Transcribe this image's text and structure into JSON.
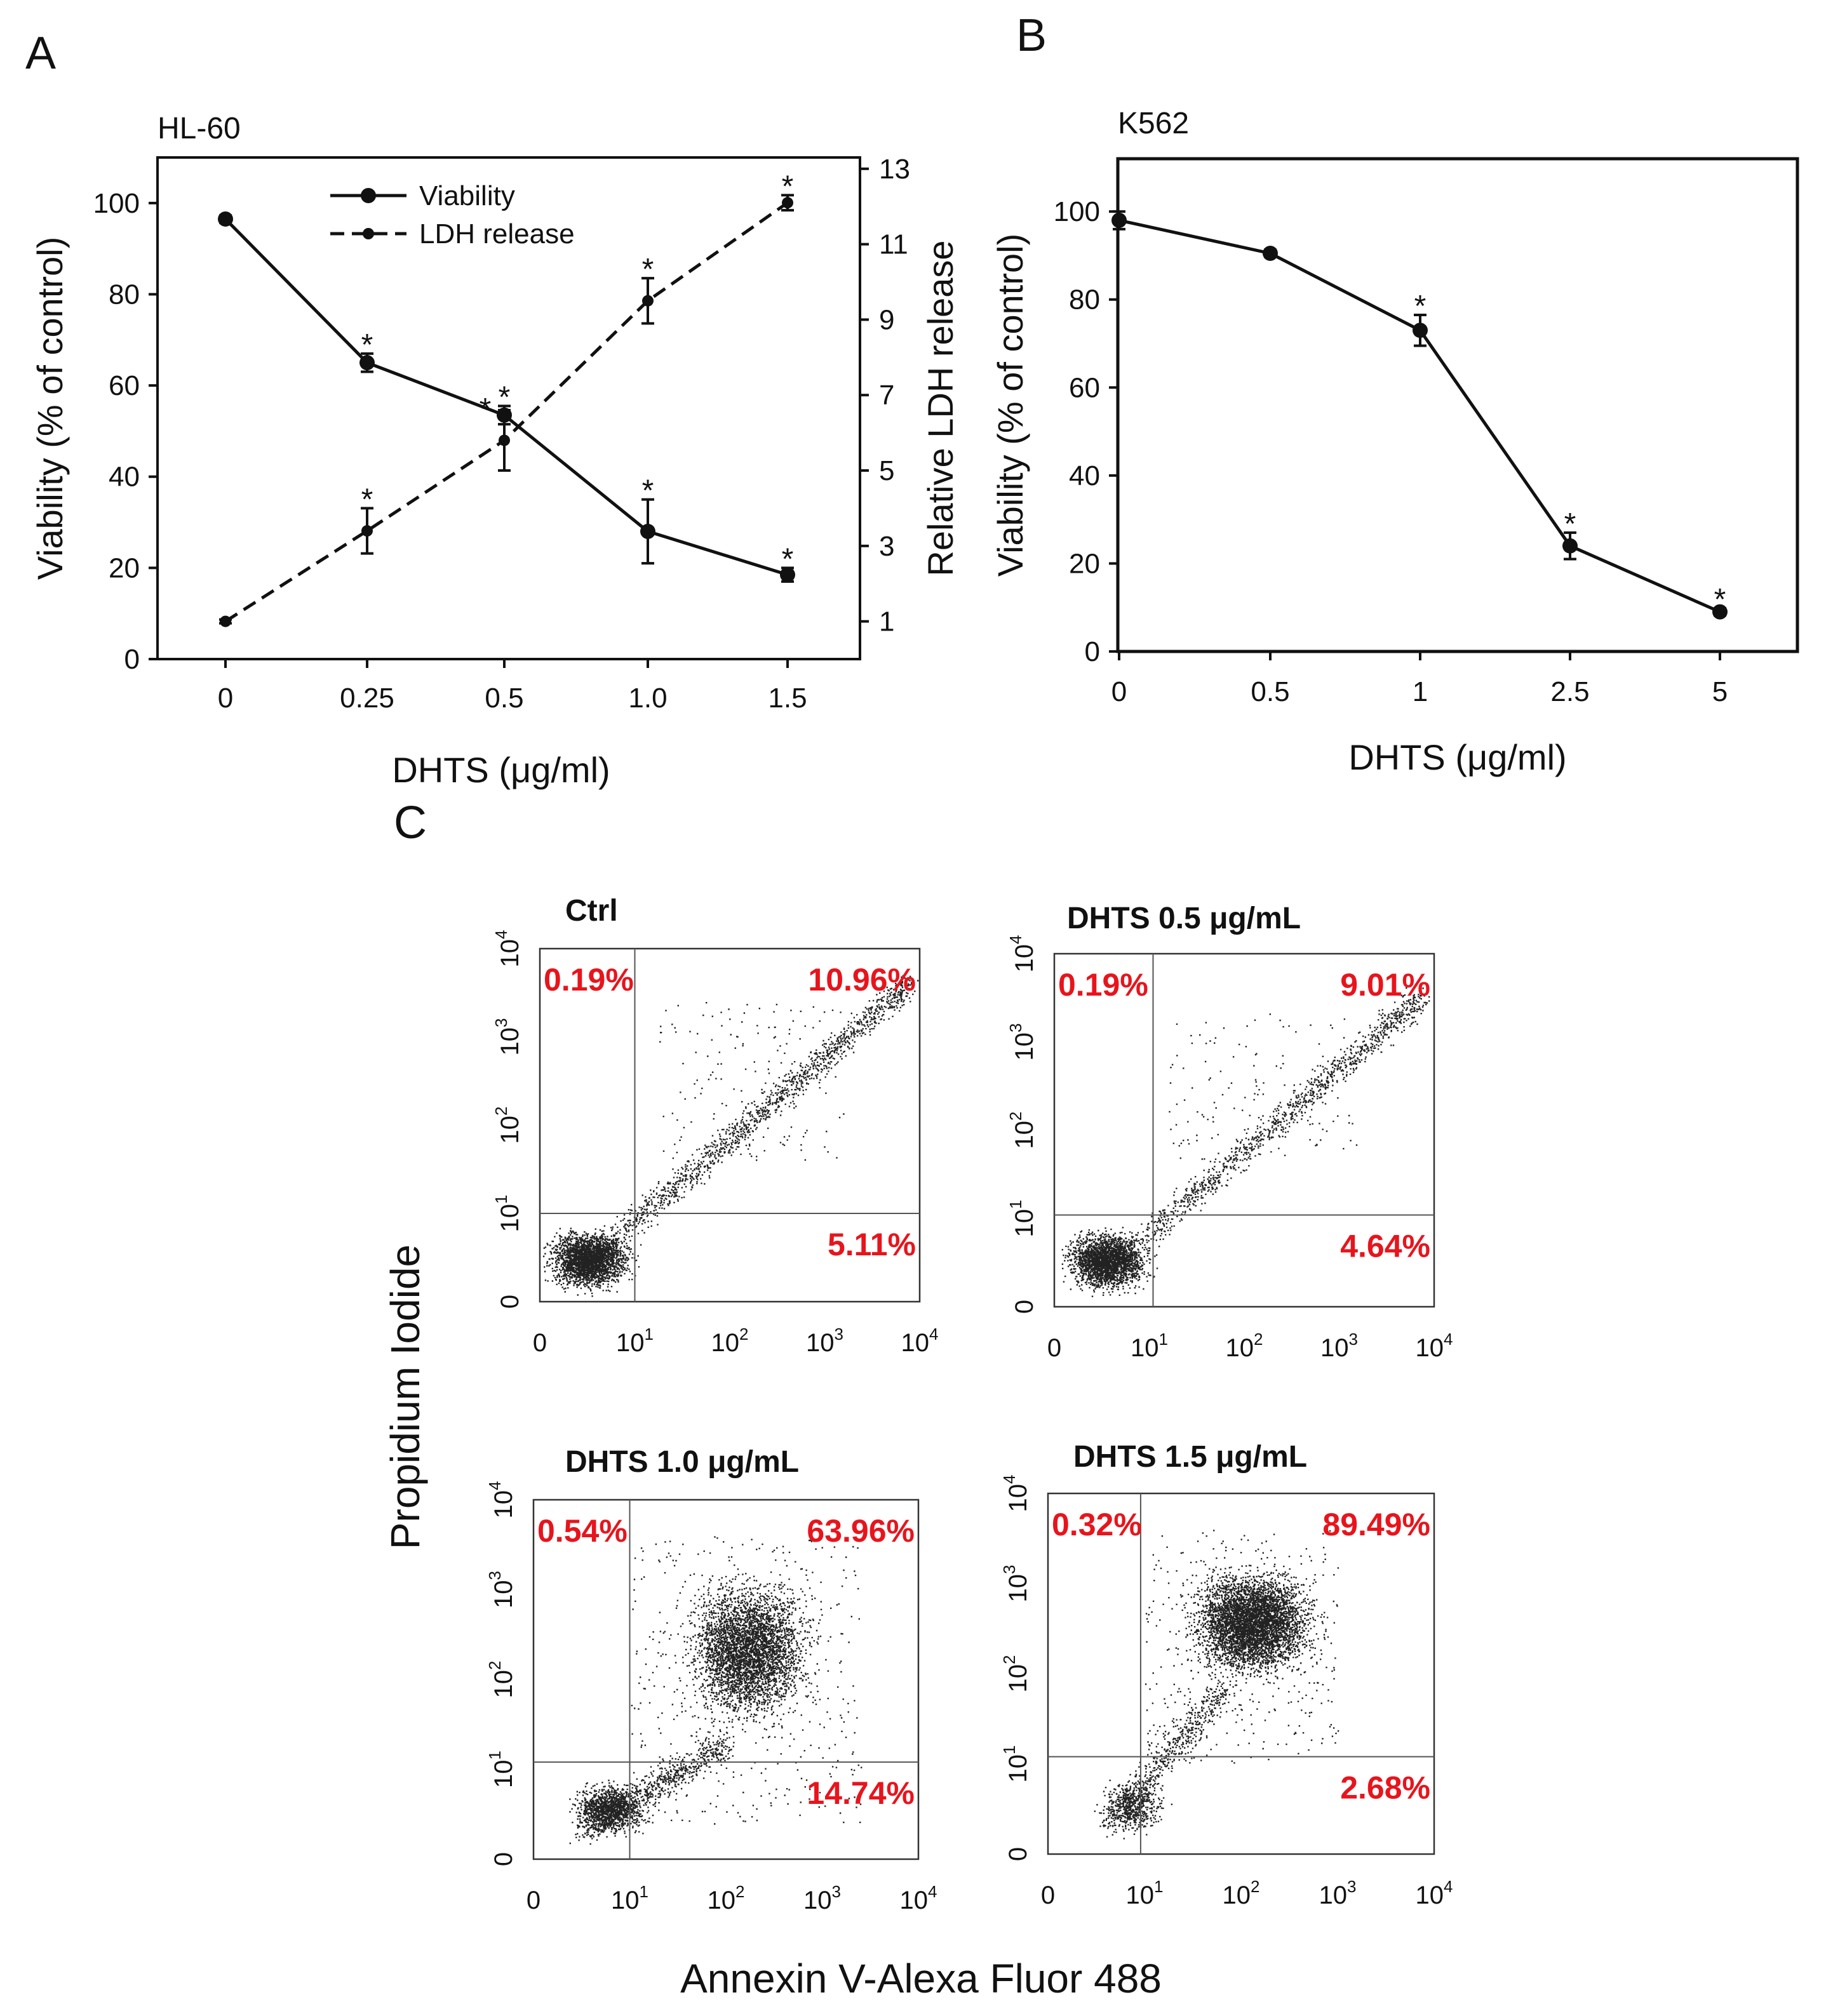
{
  "colors": {
    "ink": "#111111",
    "pct": "#e8141c"
  },
  "chart_data": [
    {
      "panel": "A",
      "type": "line",
      "cell_line": "HL-60",
      "xlabel": "DHTS (μg/ml)",
      "categories": [
        "0",
        "0.25",
        "0.5",
        "1.0",
        "1.5"
      ],
      "ylabel_left": "Viability (% of control)",
      "ylabel_right": "Relative LDH release",
      "ylim_left": [
        0,
        110
      ],
      "yticks_left": [
        0,
        20,
        40,
        60,
        80,
        100
      ],
      "ylim_right": [
        0,
        13.3
      ],
      "yticks_right": [
        1,
        3,
        5,
        7,
        9,
        11,
        13
      ],
      "series": [
        {
          "name": "Viability",
          "axis": "left",
          "style": "solid",
          "marker": "large",
          "values": [
            96.5,
            65,
            53.5,
            28,
            18.5
          ],
          "errors": [
            0.8,
            2,
            2,
            7,
            1.5
          ],
          "significant": [
            false,
            true,
            true,
            true,
            true
          ]
        },
        {
          "name": "LDH release",
          "axis": "right",
          "style": "dashed",
          "marker": "small",
          "values": [
            1,
            3.4,
            5.8,
            9.5,
            12.1
          ],
          "errors": [
            0.05,
            0.6,
            0.8,
            0.6,
            0.2
          ],
          "significant": [
            false,
            true,
            true,
            true,
            true
          ]
        }
      ],
      "legend_position": "top-center"
    },
    {
      "panel": "B",
      "type": "line",
      "cell_line": "K562",
      "xlabel": "DHTS (μg/ml)",
      "categories": [
        "0",
        "0.5",
        "1",
        "2.5",
        "5"
      ],
      "ylabel": "Viability (% of control)",
      "ylim": [
        0,
        112
      ],
      "yticks": [
        0,
        20,
        40,
        60,
        80,
        100
      ],
      "series": [
        {
          "name": "Viability",
          "values": [
            98,
            90.5,
            73,
            24,
            9
          ],
          "errors": [
            2,
            0.8,
            3.5,
            3,
            0.8
          ],
          "significant": [
            false,
            false,
            true,
            true,
            true
          ]
        }
      ]
    },
    {
      "panel": "C",
      "type": "scatter",
      "xlabel": "Annexin V-Alexa Fluor 488",
      "ylabel": "Propidium Iodide",
      "axis_scale": "log",
      "tick_labels": [
        {
          "base": "0",
          "exp": ""
        },
        {
          "base": "10",
          "exp": "1"
        },
        {
          "base": "10",
          "exp": "2"
        },
        {
          "base": "10",
          "exp": "3"
        },
        {
          "base": "10",
          "exp": "4"
        }
      ],
      "plots": [
        {
          "title": "Ctrl",
          "quadrants": {
            "upper_left": "0.19%",
            "upper_right": "10.96%",
            "lower_right": "5.11%"
          }
        },
        {
          "title": "DHTS 0.5 μg/mL",
          "quadrants": {
            "upper_left": "0.19%",
            "upper_right": "9.01%",
            "lower_right": "4.64%"
          }
        },
        {
          "title": "DHTS 1.0 μg/mL",
          "quadrants": {
            "upper_left": "0.54%",
            "upper_right": "63.96%",
            "lower_right": "14.74%"
          }
        },
        {
          "title": "DHTS 1.5 μg/mL",
          "quadrants": {
            "upper_left": "0.32%",
            "upper_right": "89.49%",
            "lower_right": "2.68%"
          }
        }
      ]
    }
  ]
}
